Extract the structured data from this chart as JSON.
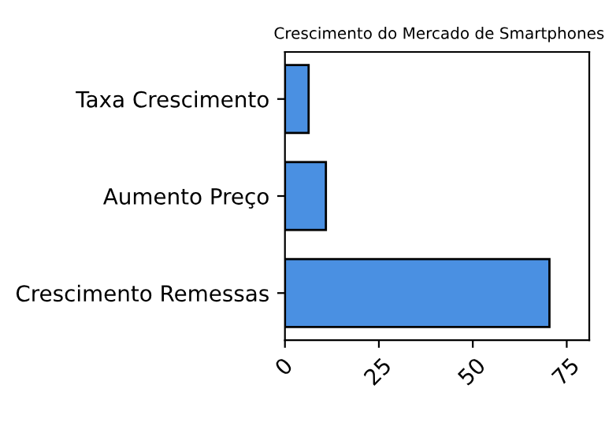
{
  "chart_data": {
    "type": "bar",
    "orientation": "horizontal",
    "title": "Crescimento do Mercado de Smartphones",
    "categories": [
      "Taxa Crescimento",
      "Aumento Preço",
      "Crescimento Remessas"
    ],
    "values": [
      6.3,
      10.9,
      70.4
    ],
    "color": "#4a90e2",
    "xlim": [
      0,
      81
    ],
    "xticks": [
      0,
      25,
      50,
      75
    ],
    "grid": false
  }
}
